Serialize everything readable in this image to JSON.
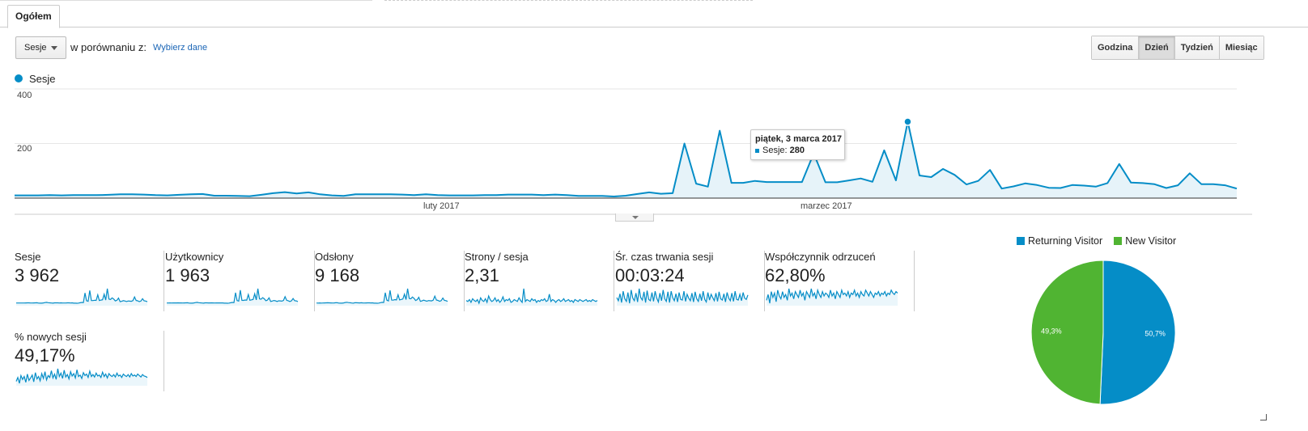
{
  "tabs": {
    "overview": "Ogółem"
  },
  "toolbar": {
    "metric_select": "Sesje",
    "compare_label": "w porównaniu z:",
    "compare_link": "Wybierz dane",
    "periods": [
      "Godzina",
      "Dzień",
      "Tydzień",
      "Miesiąc"
    ],
    "active_period": "Dzień"
  },
  "legend": {
    "series_label": "Sesje",
    "series_color": "#058dc7"
  },
  "tooltip": {
    "date": "piątek, 3 marca 2017",
    "metric": "Sesje:",
    "value": "280"
  },
  "chart_data": {
    "type": "area",
    "series": [
      {
        "name": "Sesje",
        "values": [
          10,
          10,
          10,
          11,
          10,
          11,
          11,
          11,
          12,
          14,
          14,
          13,
          11,
          10,
          12,
          14,
          15,
          9,
          9,
          8,
          7,
          12,
          18,
          22,
          17,
          21,
          14,
          10,
          8,
          14,
          14,
          14,
          14,
          13,
          11,
          14,
          11,
          10,
          10,
          10,
          11,
          11,
          13,
          13,
          13,
          11,
          13,
          11,
          8,
          8,
          8,
          6,
          9,
          15,
          21,
          16,
          18,
          200,
          53,
          42,
          247,
          56,
          56,
          63,
          59,
          59,
          59,
          59,
          164,
          58,
          58,
          65,
          72,
          60,
          175,
          65,
          280,
          83,
          77,
          107,
          85,
          50,
          63,
          103,
          35,
          43,
          54,
          48,
          38,
          37,
          48,
          46,
          42,
          55,
          125,
          57,
          55,
          51,
          37,
          47,
          91,
          51,
          51,
          47,
          35
        ]
      }
    ],
    "x_labels": [
      "luty 2017",
      "marzec 2017"
    ],
    "y_ticks": [
      200,
      400
    ],
    "ylim": [
      0,
      400
    ],
    "highlight": {
      "date": "piątek, 3 marca 2017",
      "value": 280
    },
    "grid": true
  },
  "scorecards": [
    {
      "label": "Sesje",
      "value": "3 962",
      "spark": [
        10,
        10,
        11,
        10,
        11,
        11,
        12,
        14,
        13,
        11,
        10,
        12,
        14,
        15,
        9,
        8,
        7,
        12,
        18,
        22,
        17,
        14,
        10,
        8,
        14,
        14,
        13,
        11,
        14,
        11,
        10,
        11,
        13,
        13,
        11,
        13,
        8,
        8,
        6,
        9,
        15,
        21,
        18,
        200,
        53,
        42,
        247,
        56,
        56,
        63,
        59,
        164,
        58,
        65,
        72,
        175,
        65,
        280,
        83,
        77,
        107,
        85,
        50,
        63,
        103,
        35,
        43,
        54,
        48,
        38,
        48,
        46,
        42,
        55,
        125,
        57,
        51,
        37,
        47,
        91,
        51,
        47,
        35
      ]
    },
    {
      "label": "Użytkownicy",
      "value": "1 963",
      "spark": [
        8,
        8,
        9,
        8,
        9,
        9,
        10,
        11,
        10,
        9,
        8,
        9,
        11,
        12,
        7,
        6,
        6,
        10,
        14,
        17,
        13,
        11,
        8,
        6,
        11,
        11,
        10,
        9,
        11,
        9,
        8,
        9,
        10,
        10,
        9,
        10,
        6,
        6,
        5,
        7,
        12,
        16,
        14,
        150,
        42,
        35,
        185,
        45,
        44,
        50,
        47,
        125,
        46,
        52,
        56,
        135,
        51,
        205,
        65,
        60,
        82,
        66,
        40,
        50,
        80,
        29,
        35,
        43,
        38,
        30,
        38,
        37,
        34,
        44,
        95,
        45,
        40,
        30,
        38,
        70,
        41,
        37,
        28
      ]
    },
    {
      "label": "Odsłony",
      "value": "9 168",
      "spark": [
        22,
        20,
        24,
        21,
        23,
        25,
        27,
        30,
        28,
        24,
        22,
        26,
        30,
        32,
        20,
        18,
        16,
        26,
        40,
        48,
        37,
        31,
        22,
        18,
        30,
        31,
        29,
        25,
        31,
        24,
        22,
        24,
        28,
        29,
        24,
        28,
        18,
        17,
        14,
        20,
        34,
        46,
        40,
        380,
        120,
        95,
        460,
        125,
        122,
        140,
        130,
        310,
        128,
        145,
        160,
        330,
        140,
        520,
        180,
        170,
        230,
        185,
        110,
        140,
        220,
        80,
        95,
        120,
        105,
        85,
        106,
        102,
        95,
        120,
        260,
        125,
        112,
        82,
        104,
        195,
        112,
        104,
        78
      ]
    },
    {
      "label": "Strony / sesja",
      "value": "2,31",
      "spark": [
        2.3,
        2.2,
        2.4,
        2.1,
        2.5,
        2.3,
        2.2,
        2.4,
        2.0,
        2.6,
        2.3,
        2.2,
        2.5,
        2.1,
        2.8,
        2.4,
        2.2,
        2.3,
        2.6,
        2.2,
        2.4,
        2.1,
        2.3,
        2.7,
        2.2,
        2.4,
        2.3,
        2.5,
        2.1,
        2.2,
        2.4,
        2.3,
        2.2,
        2.6,
        2.3,
        2.1,
        3.6,
        2.2,
        2.4,
        2.3,
        2.2,
        2.5,
        2.3,
        2.4,
        2.1,
        2.3,
        2.2,
        2.4,
        2.3,
        2.5,
        2.2,
        2.3,
        3.0,
        2.2,
        2.4,
        2.3,
        2.1,
        2.3,
        2.4,
        2.2,
        2.3,
        2.5,
        2.2,
        2.3,
        2.4,
        2.2,
        2.3,
        2.1,
        2.4,
        2.3,
        2.2,
        2.4,
        2.3,
        2.2,
        2.3,
        2.4,
        2.2,
        2.3,
        2.2,
        2.4,
        2.3,
        2.2,
        2.3
      ]
    },
    {
      "label": "Śr. czas trwania sesji",
      "value": "00:03:24",
      "spark": [
        200,
        150,
        260,
        120,
        300,
        180,
        140,
        280,
        110,
        320,
        190,
        150,
        270,
        130,
        340,
        200,
        160,
        290,
        120,
        310,
        170,
        150,
        280,
        140,
        300,
        190,
        130,
        270,
        150,
        320,
        180,
        140,
        290,
        120,
        300,
        200,
        150,
        260,
        130,
        280,
        170,
        160,
        300,
        140,
        250,
        190,
        150,
        270,
        130,
        290,
        180,
        140,
        260,
        150,
        300,
        170,
        130,
        280,
        160,
        250,
        200,
        150,
        270,
        140,
        290,
        180,
        160,
        260,
        130,
        280,
        190,
        150,
        270,
        140,
        300,
        170,
        160,
        250,
        150,
        280,
        190,
        170,
        240
      ]
    },
    {
      "label": "Współczynnik odrzuceń",
      "value": "62,80%",
      "spark": [
        58,
        62,
        56,
        64,
        60,
        63,
        57,
        65,
        61,
        59,
        64,
        60,
        62,
        58,
        66,
        61,
        63,
        59,
        64,
        62,
        60,
        65,
        61,
        63,
        58,
        64,
        62,
        60,
        66,
        61,
        63,
        59,
        65,
        62,
        60,
        64,
        61,
        63,
        62,
        60,
        65,
        61,
        63,
        59,
        64,
        62,
        60,
        65,
        62,
        63,
        61,
        64,
        60,
        63,
        62,
        65,
        61,
        63,
        60,
        64,
        62,
        61,
        65,
        63,
        61,
        64,
        62,
        60,
        63,
        62,
        64,
        61,
        63,
        62,
        64,
        61,
        63,
        62,
        65,
        63,
        62,
        64,
        63
      ]
    },
    {
      "label": "% nowych sesji",
      "value": "49,17%",
      "spark": [
        40,
        48,
        36,
        52,
        44,
        50,
        38,
        55,
        42,
        47,
        53,
        39,
        58,
        45,
        50,
        41,
        56,
        46,
        60,
        43,
        52,
        48,
        62,
        47,
        55,
        44,
        66,
        50,
        57,
        46,
        63,
        49,
        54,
        45,
        60,
        51,
        56,
        47,
        64,
        50,
        53,
        46,
        58,
        52,
        55,
        48,
        61,
        50,
        54,
        49,
        57,
        51,
        53,
        48,
        59,
        50,
        55,
        47,
        56,
        52,
        50,
        54,
        49,
        57,
        51,
        53,
        48,
        55,
        52,
        50,
        54,
        49,
        56,
        51,
        53,
        50,
        55,
        52,
        49,
        54,
        51,
        50,
        48
      ]
    }
  ],
  "pie": {
    "segments": [
      {
        "name": "Returning Visitor",
        "value": 50.7,
        "label": "50,7%",
        "color": "#058dc7"
      },
      {
        "name": "New Visitor",
        "value": 49.3,
        "label": "49,3%",
        "color": "#50b432"
      }
    ]
  }
}
